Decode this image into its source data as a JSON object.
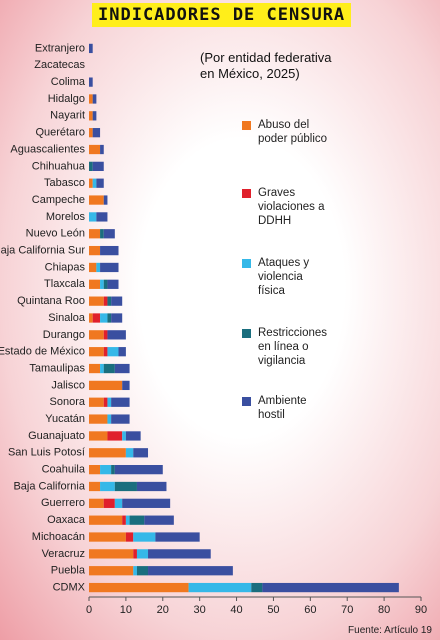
{
  "chart_data": {
    "type": "stacked-bar-horizontal",
    "title": "INDICADORES DE CENSURA",
    "subtitle": "(Por entidad federativa en México, 2025)",
    "source": "Fuente: Artículo 19",
    "categories": [
      "Extranjero",
      "Zacatecas",
      "Colima",
      "Hidalgo",
      "Nayarit",
      "Querétaro",
      "Aguascalientes",
      "Chihuahua",
      "Tabasco",
      "Campeche",
      "Morelos",
      "Nuevo León",
      "Baja California Sur",
      "Chiapas",
      "Tlaxcala",
      "Quintana Roo",
      "Sinaloa",
      "Durango",
      "Estado de México",
      "Tamaulipas",
      "Jalisco",
      "Sonora",
      "Yucatán",
      "Guanajuato",
      "San Luis Potosí",
      "Coahuila",
      "Baja California",
      "Guerrero",
      "Oaxaca",
      "Michoacán",
      "Veracruz",
      "Puebla",
      "CDMX"
    ],
    "series": [
      {
        "name": "Abuso del poder público",
        "color": "#f07820",
        "values": [
          0,
          0,
          0,
          1,
          1,
          1,
          3,
          0,
          1,
          4,
          0,
          3,
          3,
          2,
          3,
          4,
          1,
          4,
          4,
          3,
          9,
          4,
          5,
          5,
          10,
          3,
          3,
          4,
          9,
          10,
          12,
          12,
          27
        ]
      },
      {
        "name": "Graves violaciones a DDHH",
        "color": "#e0202c",
        "values": [
          0,
          0,
          0,
          0,
          0,
          0,
          0,
          0,
          0,
          0,
          0,
          0,
          0,
          0,
          0,
          1,
          2,
          1,
          1,
          0,
          0,
          1,
          0,
          4,
          0,
          0,
          0,
          3,
          1,
          2,
          1,
          0,
          0
        ]
      },
      {
        "name": "Ataques y violencia física",
        "color": "#35b8e8",
        "values": [
          0,
          0,
          0,
          0,
          0,
          0,
          0,
          0,
          1,
          0,
          2,
          0,
          0,
          1,
          1,
          0,
          2,
          0,
          3,
          1,
          0,
          1,
          1,
          1,
          2,
          3,
          4,
          2,
          1,
          6,
          3,
          1,
          17
        ]
      },
      {
        "name": "Restricciones en línea o vigilancia",
        "color": "#1a6e7e",
        "values": [
          0,
          0,
          0,
          0,
          0,
          0,
          0,
          1,
          0,
          0,
          0,
          1,
          0,
          0,
          1,
          1,
          1,
          0,
          0,
          3,
          0,
          0,
          0,
          0,
          0,
          1,
          6,
          0,
          4,
          0,
          0,
          3,
          3
        ]
      },
      {
        "name": "Ambiente hostil",
        "color": "#3a4fa0",
        "values": [
          1,
          0,
          1,
          1,
          1,
          2,
          1,
          3,
          2,
          1,
          3,
          3,
          5,
          5,
          3,
          3,
          3,
          5,
          2,
          4,
          2,
          5,
          5,
          4,
          4,
          13,
          8,
          13,
          8,
          12,
          17,
          23,
          37
        ]
      }
    ],
    "xlim": [
      0,
      90
    ],
    "xticks": [
      0,
      10,
      20,
      30,
      40,
      50,
      60,
      70,
      80,
      90
    ]
  }
}
